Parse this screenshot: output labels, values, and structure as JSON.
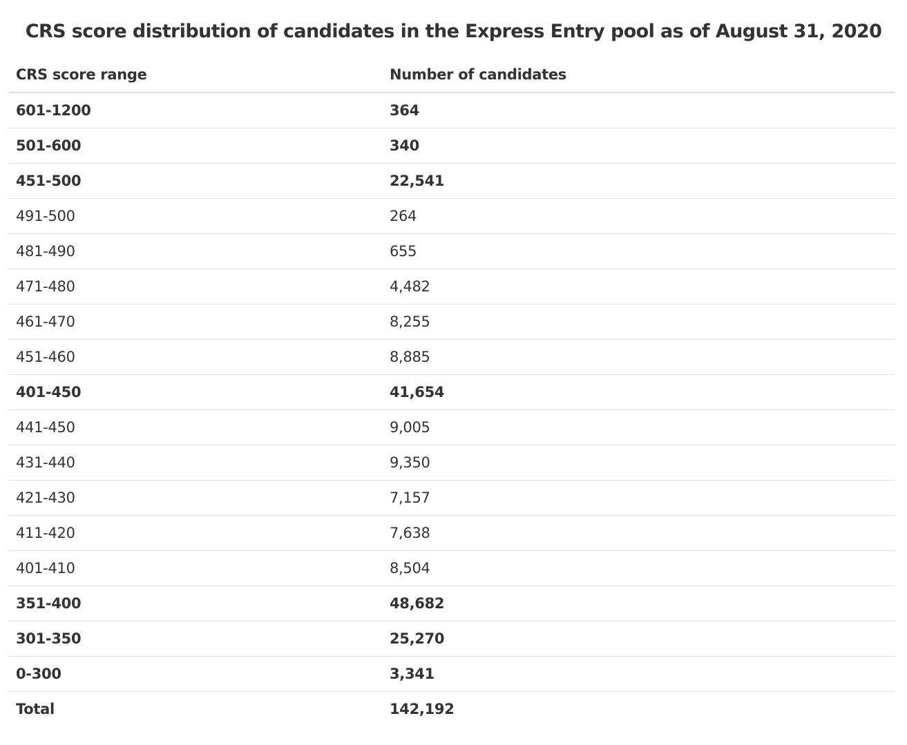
{
  "title": "CRS score distribution of candidates in the Express Entry pool as of August 31, 2020",
  "table": {
    "headers": [
      "CRS score range",
      "Number of candidates"
    ],
    "rows": [
      {
        "range": "601-1200",
        "count": "364",
        "bold": true
      },
      {
        "range": "501-600",
        "count": "340",
        "bold": true
      },
      {
        "range": "451-500",
        "count": "22,541",
        "bold": true
      },
      {
        "range": "491-500",
        "count": "264",
        "bold": false
      },
      {
        "range": "481-490",
        "count": "655",
        "bold": false
      },
      {
        "range": "471-480",
        "count": "4,482",
        "bold": false
      },
      {
        "range": "461-470",
        "count": "8,255",
        "bold": false
      },
      {
        "range": "451-460",
        "count": "8,885",
        "bold": false
      },
      {
        "range": "401-450",
        "count": "41,654",
        "bold": true
      },
      {
        "range": "441-450",
        "count": "9,005",
        "bold": false
      },
      {
        "range": "431-440",
        "count": "9,350",
        "bold": false
      },
      {
        "range": "421-430",
        "count": "7,157",
        "bold": false
      },
      {
        "range": "411-420",
        "count": "7,638",
        "bold": false
      },
      {
        "range": "401-410",
        "count": "8,504",
        "bold": false
      },
      {
        "range": "351-400",
        "count": "48,682",
        "bold": true
      },
      {
        "range": "301-350",
        "count": "25,270",
        "bold": true
      },
      {
        "range": "0-300",
        "count": "3,341",
        "bold": true
      },
      {
        "range": "Total",
        "count": "142,192",
        "bold": true
      }
    ]
  }
}
